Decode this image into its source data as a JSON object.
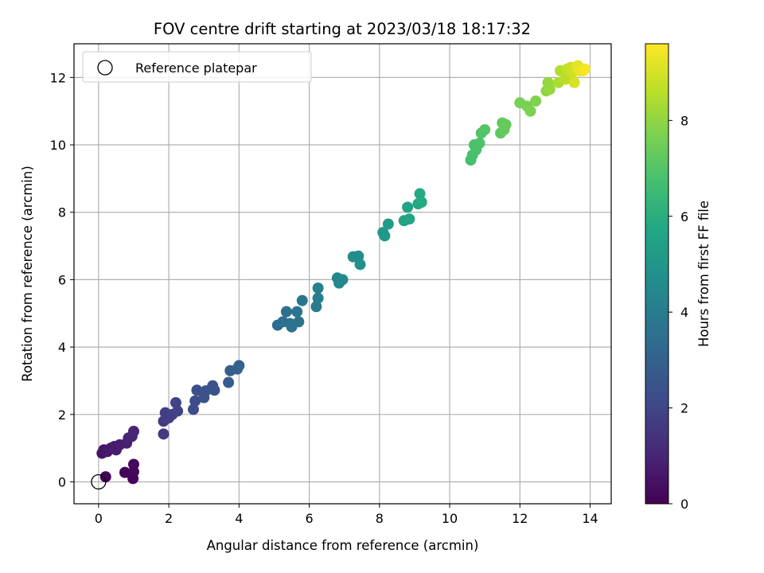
{
  "chart_data": {
    "type": "scatter",
    "title": "FOV centre drift starting at 2023/03/18 18:17:32",
    "xlabel": "Angular distance from reference (arcmin)",
    "ylabel": "Rotation from reference (arcmin)",
    "xlim": [
      -0.7,
      14.6
    ],
    "ylim": [
      -0.65,
      13.0
    ],
    "xticks": [
      0,
      2,
      4,
      6,
      8,
      10,
      12,
      14
    ],
    "yticks": [
      0,
      2,
      4,
      6,
      8,
      10,
      12
    ],
    "grid": true,
    "legend": {
      "position": "top-left",
      "entries": [
        "Reference platepar"
      ]
    },
    "reference_point": {
      "x": 0,
      "y": 0
    },
    "colorbar": {
      "label": "Hours from first FF file",
      "colormap": "viridis",
      "range": [
        0,
        9.6
      ],
      "ticks": [
        0,
        2,
        4,
        6,
        8
      ]
    },
    "series": [
      {
        "columns": [
          "x",
          "y",
          "hours"
        ],
        "points": [
          [
            0.2,
            0.15,
            0.05
          ],
          [
            0.75,
            0.28,
            0.1
          ],
          [
            0.98,
            0.1,
            0.15
          ],
          [
            1.0,
            0.3,
            0.2
          ],
          [
            1.0,
            0.52,
            0.25
          ],
          [
            0.1,
            0.85,
            0.5
          ],
          [
            0.15,
            0.95,
            0.55
          ],
          [
            0.25,
            0.9,
            0.6
          ],
          [
            0.35,
            1.0,
            0.65
          ],
          [
            0.45,
            1.05,
            0.7
          ],
          [
            0.5,
            0.95,
            0.75
          ],
          [
            0.6,
            1.1,
            0.8
          ],
          [
            0.8,
            1.15,
            0.85
          ],
          [
            0.85,
            1.3,
            0.9
          ],
          [
            0.95,
            1.35,
            0.95
          ],
          [
            1.0,
            1.5,
            1.0
          ],
          [
            1.85,
            1.42,
            1.6
          ],
          [
            1.85,
            1.8,
            1.65
          ],
          [
            1.9,
            2.05,
            1.7
          ],
          [
            2.0,
            1.9,
            1.75
          ],
          [
            2.1,
            2.0,
            1.8
          ],
          [
            2.2,
            2.35,
            1.85
          ],
          [
            2.25,
            2.1,
            1.9
          ],
          [
            2.7,
            2.15,
            2.2
          ],
          [
            2.75,
            2.4,
            2.25
          ],
          [
            2.8,
            2.72,
            2.3
          ],
          [
            3.0,
            2.5,
            2.35
          ],
          [
            3.05,
            2.7,
            2.4
          ],
          [
            3.25,
            2.85,
            2.45
          ],
          [
            3.3,
            2.72,
            2.5
          ],
          [
            3.7,
            2.95,
            2.8
          ],
          [
            3.75,
            3.3,
            2.85
          ],
          [
            3.95,
            3.35,
            2.9
          ],
          [
            4.0,
            3.45,
            2.95
          ],
          [
            5.1,
            4.65,
            3.4
          ],
          [
            5.25,
            4.75,
            3.45
          ],
          [
            5.35,
            5.05,
            3.5
          ],
          [
            5.45,
            4.7,
            3.55
          ],
          [
            5.5,
            4.6,
            3.6
          ],
          [
            5.65,
            5.05,
            3.65
          ],
          [
            5.7,
            4.75,
            3.7
          ],
          [
            5.8,
            5.38,
            3.75
          ],
          [
            6.2,
            5.2,
            4.0
          ],
          [
            6.25,
            5.45,
            4.05
          ],
          [
            6.25,
            5.75,
            4.1
          ],
          [
            6.8,
            6.05,
            4.4
          ],
          [
            6.85,
            5.9,
            4.45
          ],
          [
            6.95,
            6.0,
            4.5
          ],
          [
            7.25,
            6.68,
            4.65
          ],
          [
            7.4,
            6.7,
            4.7
          ],
          [
            7.45,
            6.45,
            4.75
          ],
          [
            8.1,
            7.4,
            5.1
          ],
          [
            8.15,
            7.3,
            5.15
          ],
          [
            8.25,
            7.65,
            5.2
          ],
          [
            8.7,
            7.75,
            5.5
          ],
          [
            8.8,
            8.15,
            5.55
          ],
          [
            8.85,
            7.8,
            5.6
          ],
          [
            9.1,
            8.25,
            5.75
          ],
          [
            9.15,
            8.55,
            5.8
          ],
          [
            9.2,
            8.3,
            5.85
          ],
          [
            10.6,
            9.55,
            6.7
          ],
          [
            10.65,
            9.7,
            6.75
          ],
          [
            10.7,
            10.0,
            6.8
          ],
          [
            10.75,
            9.85,
            6.85
          ],
          [
            10.85,
            10.05,
            6.9
          ],
          [
            10.9,
            10.35,
            6.95
          ],
          [
            11.0,
            10.45,
            7.0
          ],
          [
            11.45,
            10.35,
            7.2
          ],
          [
            11.5,
            10.65,
            7.25
          ],
          [
            11.55,
            10.45,
            7.3
          ],
          [
            11.6,
            10.6,
            7.35
          ],
          [
            12.0,
            11.25,
            7.6
          ],
          [
            12.2,
            11.15,
            7.65
          ],
          [
            12.3,
            11.0,
            7.7
          ],
          [
            12.45,
            11.3,
            7.75
          ],
          [
            12.75,
            11.6,
            8.0
          ],
          [
            12.8,
            11.85,
            8.05
          ],
          [
            12.85,
            11.65,
            8.1
          ],
          [
            13.1,
            11.85,
            8.4
          ],
          [
            13.15,
            12.2,
            8.5
          ],
          [
            13.3,
            11.95,
            8.6
          ],
          [
            13.35,
            12.25,
            8.7
          ],
          [
            13.45,
            12.3,
            8.8
          ],
          [
            13.5,
            12.15,
            8.9
          ],
          [
            13.55,
            11.85,
            9.0
          ],
          [
            13.6,
            12.3,
            9.1
          ],
          [
            13.65,
            12.35,
            9.2
          ],
          [
            13.7,
            12.2,
            9.3
          ],
          [
            13.8,
            12.2,
            9.4
          ],
          [
            13.85,
            12.25,
            9.5
          ]
        ]
      }
    ]
  }
}
